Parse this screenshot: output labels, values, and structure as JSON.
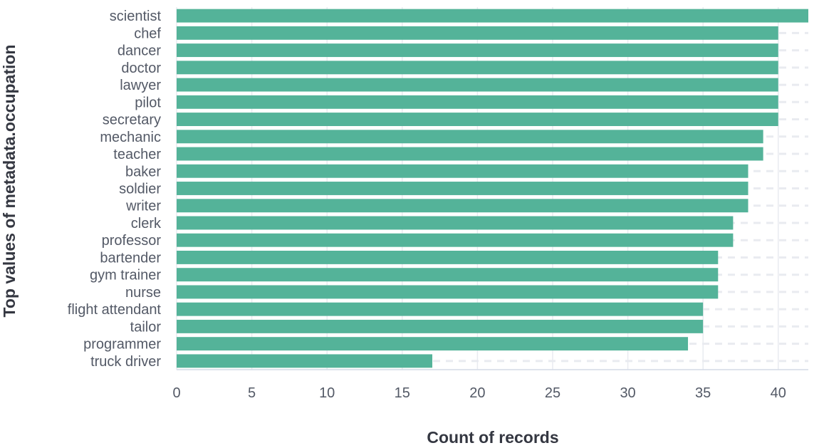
{
  "chart_data": {
    "type": "bar",
    "orientation": "horizontal",
    "ylabel": "Top values of metadata.occupation",
    "xlabel": "Count of records",
    "categories": [
      "scientist",
      "chef",
      "dancer",
      "doctor",
      "lawyer",
      "pilot",
      "secretary",
      "mechanic",
      "teacher",
      "baker",
      "soldier",
      "writer",
      "clerk",
      "professor",
      "bartender",
      "gym trainer",
      "nurse",
      "flight attendant",
      "tailor",
      "programmer",
      "truck driver"
    ],
    "values": [
      42,
      40,
      40,
      40,
      40,
      40,
      40,
      39,
      39,
      38,
      38,
      38,
      37,
      37,
      36,
      36,
      36,
      35,
      35,
      34,
      17
    ],
    "xlim": [
      0,
      42
    ],
    "xticks": [
      0,
      5,
      10,
      15,
      20,
      25,
      30,
      35,
      40
    ],
    "grid": true,
    "bar_color": "#54b399",
    "grid_color": "#e9ebf0"
  }
}
